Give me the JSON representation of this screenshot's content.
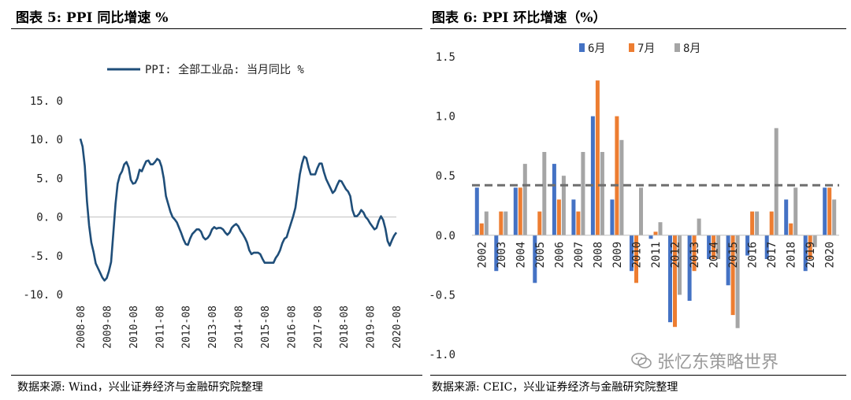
{
  "left": {
    "title": "图表 5:  PPI 同比增速  %",
    "source": "数据来源:  Wind，兴业证券经济与金融研究院整理",
    "legend": "PPI: 全部工业品: 当月同比  %",
    "colors": {
      "line": "#1f4e79"
    }
  },
  "right": {
    "title": "图表 6:  PPI 环比增速（%）",
    "source": "数据来源:  CEIC，兴业证券经济与金融研究院整理",
    "colors": {
      "jun": "#4472c4",
      "jul": "#ed7d31",
      "aug": "#a5a5a5",
      "dashed": "#6e6e6e"
    }
  },
  "watermark": "张忆东策略世界",
  "chart_data": [
    {
      "type": "line",
      "xlabel": "",
      "ylabel": "",
      "ylim": [
        -10,
        15
      ],
      "yticks": [
        "15. 0",
        "10. 0",
        "5. 0",
        "0. 0",
        "-5. 0",
        "-10. 0"
      ],
      "xticks": [
        "2008-08",
        "2009-08",
        "2010-08",
        "2011-08",
        "2012-08",
        "2013-08",
        "2014-08",
        "2015-08",
        "2016-08",
        "2017-08",
        "2018-08",
        "2019-08",
        "2020-08"
      ],
      "x": [
        "2008-08",
        "2008-09",
        "2008-10",
        "2008-11",
        "2008-12",
        "2009-01",
        "2009-02",
        "2009-03",
        "2009-04",
        "2009-05",
        "2009-06",
        "2009-07",
        "2009-08",
        "2009-09",
        "2009-10",
        "2009-11",
        "2009-12",
        "2010-01",
        "2010-02",
        "2010-03",
        "2010-04",
        "2010-05",
        "2010-06",
        "2010-07",
        "2010-08",
        "2010-09",
        "2010-10",
        "2010-11",
        "2010-12",
        "2011-01",
        "2011-02",
        "2011-03",
        "2011-04",
        "2011-05",
        "2011-06",
        "2011-07",
        "2011-08",
        "2011-09",
        "2011-10",
        "2011-11",
        "2011-12",
        "2012-01",
        "2012-02",
        "2012-03",
        "2012-04",
        "2012-05",
        "2012-06",
        "2012-07",
        "2012-08",
        "2012-09",
        "2012-10",
        "2012-11",
        "2012-12",
        "2013-01",
        "2013-02",
        "2013-03",
        "2013-04",
        "2013-05",
        "2013-06",
        "2013-07",
        "2013-08",
        "2013-09",
        "2013-10",
        "2013-11",
        "2013-12",
        "2014-01",
        "2014-02",
        "2014-03",
        "2014-04",
        "2014-05",
        "2014-06",
        "2014-07",
        "2014-08",
        "2014-09",
        "2014-10",
        "2014-11",
        "2014-12",
        "2015-01",
        "2015-02",
        "2015-03",
        "2015-04",
        "2015-05",
        "2015-06",
        "2015-07",
        "2015-08",
        "2015-09",
        "2015-10",
        "2015-11",
        "2015-12",
        "2016-01",
        "2016-02",
        "2016-03",
        "2016-04",
        "2016-05",
        "2016-06",
        "2016-07",
        "2016-08",
        "2016-09",
        "2016-10",
        "2016-11",
        "2016-12",
        "2017-01",
        "2017-02",
        "2017-03",
        "2017-04",
        "2017-05",
        "2017-06",
        "2017-07",
        "2017-08",
        "2017-09",
        "2017-10",
        "2017-11",
        "2017-12",
        "2018-01",
        "2018-02",
        "2018-03",
        "2018-04",
        "2018-05",
        "2018-06",
        "2018-07",
        "2018-08",
        "2018-09",
        "2018-10",
        "2018-11",
        "2018-12",
        "2019-01",
        "2019-02",
        "2019-03",
        "2019-04",
        "2019-05",
        "2019-06",
        "2019-07",
        "2019-08",
        "2019-09",
        "2019-10",
        "2019-11",
        "2019-12",
        "2020-01",
        "2020-02",
        "2020-03",
        "2020-04",
        "2020-05",
        "2020-06",
        "2020-07",
        "2020-08"
      ],
      "series": [
        {
          "name": "PPI: 全部工业品: 当月同比  %",
          "values": [
            10.1,
            9.1,
            6.6,
            2.0,
            -1.1,
            -3.3,
            -4.5,
            -6.0,
            -6.6,
            -7.2,
            -7.8,
            -8.2,
            -7.9,
            -7.0,
            -5.8,
            -2.1,
            1.7,
            4.3,
            5.4,
            5.9,
            6.8,
            7.1,
            6.4,
            4.8,
            4.3,
            4.4,
            5.0,
            6.1,
            5.9,
            6.6,
            7.2,
            7.3,
            6.8,
            6.8,
            7.1,
            7.5,
            7.3,
            6.5,
            5.0,
            2.7,
            1.7,
            0.7,
            0.0,
            -0.3,
            -0.7,
            -1.4,
            -2.1,
            -2.9,
            -3.5,
            -3.6,
            -2.8,
            -2.2,
            -1.9,
            -1.6,
            -1.6,
            -1.9,
            -2.6,
            -2.9,
            -2.7,
            -2.3,
            -1.6,
            -1.3,
            -1.5,
            -1.4,
            -1.4,
            -1.6,
            -2.0,
            -2.3,
            -2.0,
            -1.4,
            -1.1,
            -0.9,
            -1.2,
            -1.8,
            -2.2,
            -2.7,
            -3.3,
            -4.3,
            -4.8,
            -4.6,
            -4.6,
            -4.6,
            -4.8,
            -5.4,
            -5.9,
            -5.9,
            -5.9,
            -5.9,
            -5.9,
            -5.3,
            -4.9,
            -4.3,
            -3.4,
            -2.8,
            -2.6,
            -1.7,
            -0.8,
            0.1,
            1.2,
            3.3,
            5.5,
            6.9,
            7.8,
            7.6,
            6.4,
            5.5,
            5.5,
            5.5,
            6.3,
            6.9,
            6.9,
            5.8,
            4.9,
            4.3,
            3.7,
            3.1,
            3.4,
            4.1,
            4.7,
            4.6,
            4.1,
            3.6,
            3.3,
            2.7,
            0.9,
            0.1,
            0.1,
            0.4,
            0.9,
            0.6,
            0.0,
            -0.3,
            -0.8,
            -1.2,
            -1.6,
            -1.4,
            -0.5,
            0.1,
            -0.4,
            -1.5,
            -3.1,
            -3.7,
            -3.0,
            -2.4,
            -2.0
          ]
        }
      ]
    },
    {
      "type": "bar",
      "title": "",
      "ylim": [
        -1.0,
        1.5
      ],
      "yticks": [
        "1.5",
        "1.0",
        "0.5",
        "0.0",
        "-0.5",
        "-1.0"
      ],
      "categories": [
        "2002",
        "2003",
        "2004",
        "2005",
        "2006",
        "2007",
        "2008",
        "2009",
        "2010",
        "2011",
        "2012",
        "2013",
        "2014",
        "2015",
        "2016",
        "2017",
        "2018",
        "2019",
        "2020"
      ],
      "series": [
        {
          "name": "6月",
          "values": [
            0.4,
            -0.3,
            0.4,
            -0.4,
            0.6,
            0.3,
            1.0,
            0.3,
            -0.3,
            -0.03,
            -0.73,
            -0.55,
            -0.2,
            -0.42,
            -0.17,
            -0.2,
            0.3,
            -0.3,
            0.4
          ]
        },
        {
          "name": "7月",
          "values": [
            0.1,
            0.2,
            0.4,
            0.2,
            0.3,
            0.2,
            1.3,
            1.0,
            -0.4,
            0.03,
            -0.77,
            -0.3,
            -0.2,
            -0.67,
            0.2,
            0.2,
            0.1,
            -0.2,
            0.4
          ]
        },
        {
          "name": "8月",
          "values": [
            0.2,
            0.2,
            0.6,
            0.7,
            0.5,
            0.7,
            0.7,
            0.8,
            0.4,
            0.11,
            -0.5,
            0.14,
            -0.2,
            -0.78,
            0.2,
            0.9,
            0.4,
            -0.1,
            0.3
          ]
        }
      ],
      "reference_line": 0.42,
      "legend_position": "top"
    }
  ]
}
